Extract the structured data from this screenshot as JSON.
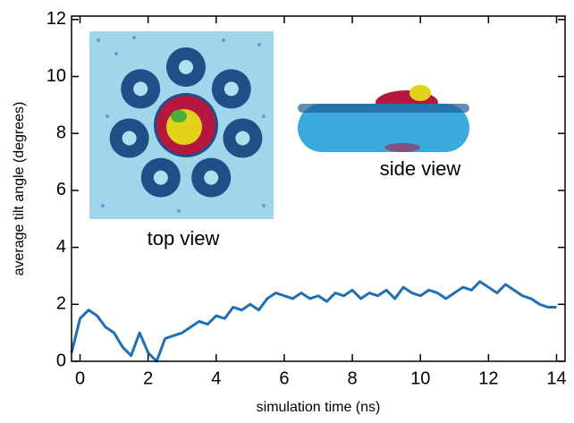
{
  "chart_data": {
    "type": "line",
    "xlabel": "simulation time (ns)",
    "ylabel": "average tilt angle (degrees)",
    "annotations": [
      "top view",
      "side view"
    ],
    "x": [
      -0.25,
      0,
      0.25,
      0.5,
      0.75,
      1.0,
      1.25,
      1.5,
      1.75,
      2.0,
      2.25,
      2.5,
      2.75,
      3.0,
      3.25,
      3.5,
      3.75,
      4.0,
      4.25,
      4.5,
      4.75,
      5.0,
      5.25,
      5.5,
      5.75,
      6.0,
      6.25,
      6.5,
      6.75,
      7.0,
      7.25,
      7.5,
      7.75,
      8.0,
      8.25,
      8.5,
      8.75,
      9.0,
      9.25,
      9.5,
      9.75,
      10.0,
      10.25,
      10.5,
      10.75,
      11.0,
      11.25,
      11.5,
      11.75,
      12.0,
      12.25,
      12.5,
      12.75,
      13.0,
      13.25,
      13.5,
      13.75,
      14.0
    ],
    "values": [
      0.3,
      1.5,
      1.8,
      1.6,
      1.2,
      1.0,
      0.5,
      0.2,
      1.0,
      0.3,
      0.0,
      0.8,
      0.9,
      1.0,
      1.2,
      1.4,
      1.3,
      1.6,
      1.5,
      1.9,
      1.8,
      2.0,
      1.8,
      2.2,
      2.4,
      2.3,
      2.2,
      2.4,
      2.2,
      2.3,
      2.1,
      2.4,
      2.3,
      2.5,
      2.2,
      2.4,
      2.3,
      2.5,
      2.2,
      2.6,
      2.4,
      2.3,
      2.5,
      2.4,
      2.2,
      2.4,
      2.6,
      2.5,
      2.8,
      2.6,
      2.4,
      2.7,
      2.5,
      2.3,
      2.2,
      2.0,
      1.9,
      1.9
    ],
    "color": "#1f6fb4",
    "xlim": [
      -0.25,
      14.25
    ],
    "xticks": [
      0,
      2,
      4,
      6,
      8,
      10,
      12,
      14
    ],
    "ylim": [
      0,
      12.12
    ],
    "yticks": [
      0,
      2,
      4,
      6,
      8,
      10,
      12
    ]
  }
}
